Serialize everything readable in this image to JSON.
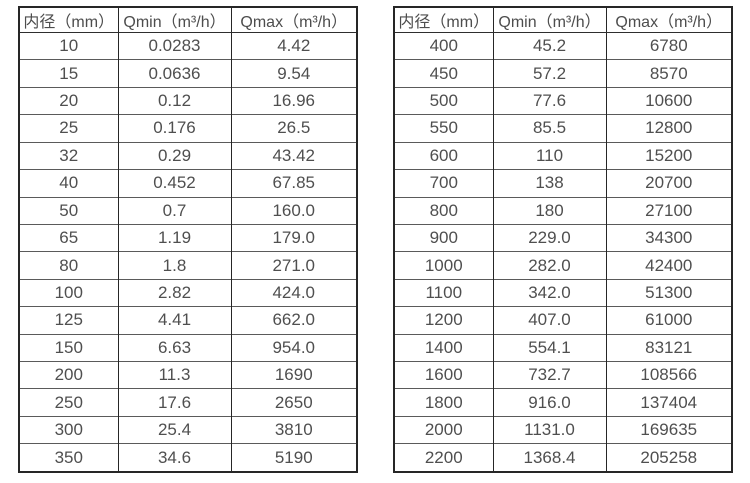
{
  "page": {
    "background_color": "#ffffff",
    "text_color": "#4f4f4f",
    "border_color": "#262626"
  },
  "chart_data": [
    {
      "type": "table",
      "position": "left",
      "headers": [
        "内径（mm）",
        "Qmin（m³/h）",
        "Qmax（m³/h）"
      ],
      "rows": [
        [
          "10",
          "0.0283",
          "4.42"
        ],
        [
          "15",
          "0.0636",
          "9.54"
        ],
        [
          "20",
          "0.12",
          "16.96"
        ],
        [
          "25",
          "0.176",
          "26.5"
        ],
        [
          "32",
          "0.29",
          "43.42"
        ],
        [
          "40",
          "0.452",
          "67.85"
        ],
        [
          "50",
          "0.7",
          "160.0"
        ],
        [
          "65",
          "1.19",
          "179.0"
        ],
        [
          "80",
          "1.8",
          "271.0"
        ],
        [
          "100",
          "2.82",
          "424.0"
        ],
        [
          "125",
          "4.41",
          "662.0"
        ],
        [
          "150",
          "6.63",
          "954.0"
        ],
        [
          "200",
          "11.3",
          "1690"
        ],
        [
          "250",
          "17.6",
          "2650"
        ],
        [
          "300",
          "25.4",
          "3810"
        ],
        [
          "350",
          "34.6",
          "5190"
        ]
      ]
    },
    {
      "type": "table",
      "position": "right",
      "headers": [
        "内径（mm）",
        "Qmin（m³/h）",
        "Qmax（m³/h）"
      ],
      "rows": [
        [
          "400",
          "45.2",
          "6780"
        ],
        [
          "450",
          "57.2",
          "8570"
        ],
        [
          "500",
          "77.6",
          "10600"
        ],
        [
          "550",
          "85.5",
          "12800"
        ],
        [
          "600",
          "110",
          "15200"
        ],
        [
          "700",
          "138",
          "20700"
        ],
        [
          "800",
          "180",
          "27100"
        ],
        [
          "900",
          "229.0",
          "34300"
        ],
        [
          "1000",
          "282.0",
          "42400"
        ],
        [
          "1100",
          "342.0",
          "51300"
        ],
        [
          "1200",
          "407.0",
          "61000"
        ],
        [
          "1400",
          "554.1",
          "83121"
        ],
        [
          "1600",
          "732.7",
          "108566"
        ],
        [
          "1800",
          "916.0",
          "137404"
        ],
        [
          "2000",
          "1131.0",
          "169635"
        ],
        [
          "2200",
          "1368.4",
          "205258"
        ]
      ]
    }
  ]
}
